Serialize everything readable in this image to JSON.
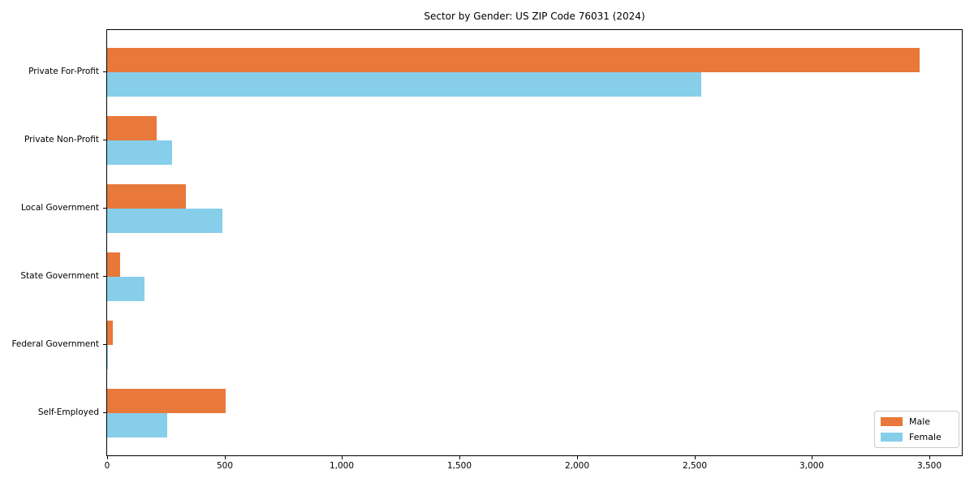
{
  "chart_data": {
    "type": "bar",
    "orientation": "horizontal",
    "title": "Sector by Gender: US ZIP Code 76031 (2024)",
    "categories": [
      "Private For-Profit",
      "Private Non-Profit",
      "Local Government",
      "State Government",
      "Federal Government",
      "Self-Employed"
    ],
    "series": [
      {
        "name": "Male",
        "color": "#e8793a",
        "values": [
          3460,
          210,
          335,
          55,
          25,
          505
        ]
      },
      {
        "name": "Female",
        "color": "#87ceeb",
        "values": [
          2530,
          275,
          490,
          160,
          5,
          255
        ]
      }
    ],
    "xlabel": "",
    "ylabel": "",
    "xlim": [
      0,
      3638
    ],
    "xticks": [
      0,
      500,
      1000,
      1500,
      2000,
      2500,
      3000,
      3500
    ],
    "xtick_labels": [
      "0",
      "500",
      "1,000",
      "1,500",
      "2,000",
      "2,500",
      "3,000",
      "3,500"
    ],
    "grid": false,
    "legend": {
      "position": "lower right"
    },
    "axis_color": "#000000",
    "background_color": "#ffffff"
  }
}
